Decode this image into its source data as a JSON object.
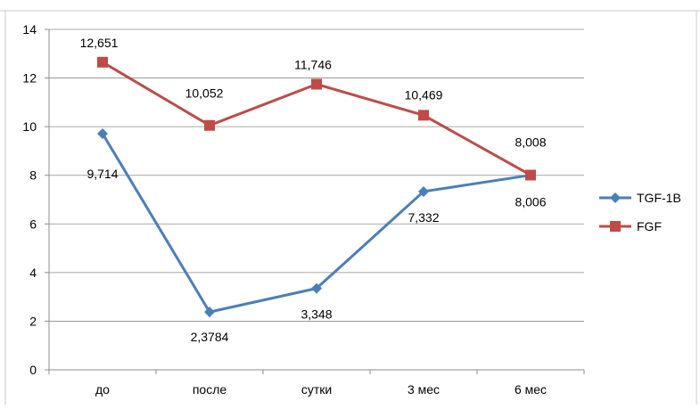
{
  "chart_data": {
    "type": "line",
    "categories": [
      "до",
      "после",
      "сутки",
      "3 мес",
      "6 мес"
    ],
    "series": [
      {
        "name": "TGF-1B",
        "color": "#4a7ebb",
        "marker": "diamond",
        "values": [
          9.714,
          2.3784,
          3.348,
          7.332,
          8.006
        ],
        "labels": [
          "9,714",
          "2,3784",
          "3,348",
          "7,332",
          "8,006"
        ]
      },
      {
        "name": "FGF",
        "color": "#be4b48",
        "marker": "square",
        "values": [
          12.651,
          10.052,
          11.746,
          10.469,
          8.008
        ],
        "labels": [
          "12,651",
          "10,052",
          "11,746",
          "10,469",
          "8,008"
        ]
      }
    ],
    "y_ticks": [
      0,
      2,
      4,
      6,
      8,
      10,
      12,
      14
    ],
    "ylim": [
      0,
      14
    ],
    "grid": true,
    "legend_position": "right"
  }
}
